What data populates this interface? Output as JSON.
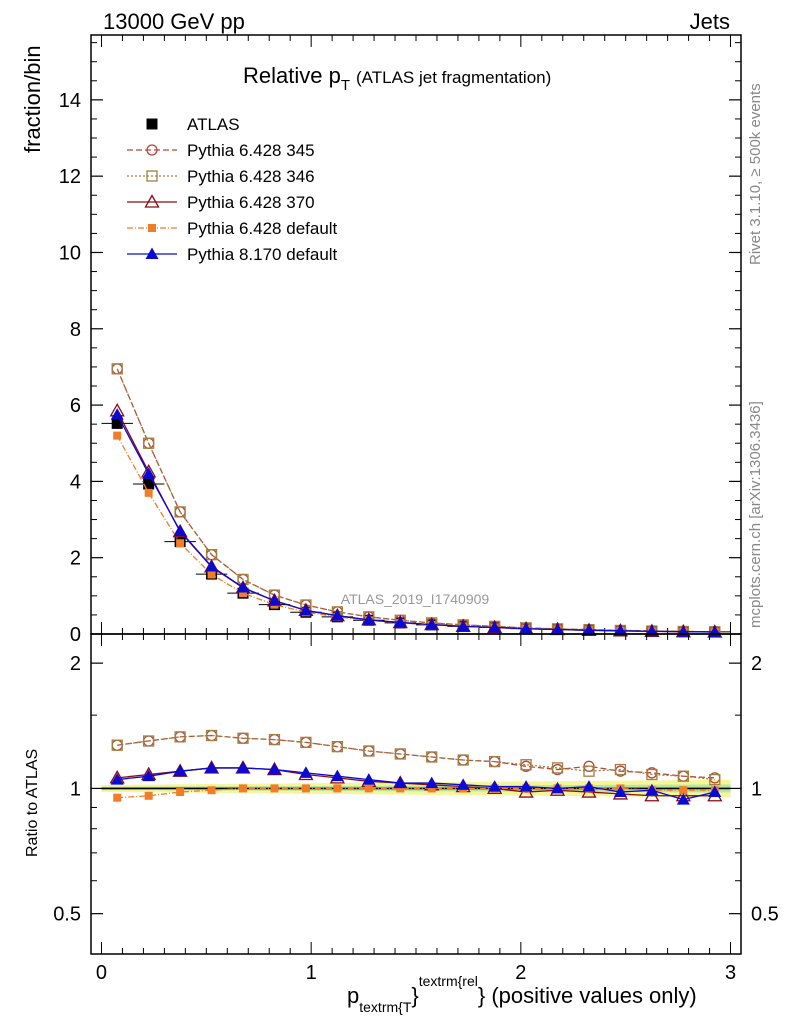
{
  "header": {
    "left": "13000 GeV pp",
    "right": "Jets"
  },
  "side_labels": {
    "rivet": "Rivet 3.1.10, ≥ 500k events",
    "mcplots": "mcplots.cern.ch [arXiv:1306.3436]"
  },
  "watermark": "ATLAS_2019_I1740909",
  "title": {
    "main": "Relative p",
    "sub": "T",
    "extra": "(ATLAS jet fragmentation)"
  },
  "ylabel_main": "fraction/bin",
  "ylabel_ratio": "Ratio to ATLAS",
  "xlabel": {
    "p": "p",
    "sub": "textrm{T",
    "brace": "}",
    "sup": "textrm{rel",
    "tail": "} (positive values only)"
  },
  "chart_data": {
    "type": "line",
    "x": [
      0.075,
      0.225,
      0.375,
      0.525,
      0.675,
      0.825,
      0.975,
      1.125,
      1.275,
      1.425,
      1.575,
      1.725,
      1.875,
      2.025,
      2.175,
      2.325,
      2.475,
      2.625,
      2.775,
      2.925
    ],
    "xlim": [
      -0.05,
      3.05
    ],
    "xticks": [
      "0",
      "1",
      "2",
      "3"
    ],
    "main": {
      "ylim": [
        0,
        15.7
      ],
      "yticks": [
        "0",
        "2",
        "4",
        "6",
        "8",
        "10",
        "12",
        "14"
      ],
      "series": [
        {
          "name": "ATLAS",
          "color": "#000000",
          "marker": "square-filled",
          "values": [
            5.52,
            3.93,
            2.42,
            1.57,
            1.07,
            0.77,
            0.57,
            0.45,
            0.36,
            0.29,
            0.24,
            0.2,
            0.17,
            0.14,
            0.12,
            0.1,
            0.085,
            0.073,
            0.063,
            0.055
          ]
        },
        {
          "name": "Pythia 6.428 345",
          "color": "#b5463a",
          "marker": "circle-open",
          "dash": "6,3",
          "values": [
            6.95,
            5.0,
            3.2,
            2.08,
            1.43,
            1.02,
            0.76,
            0.58,
            0.45,
            0.36,
            0.29,
            0.24,
            0.2,
            0.16,
            0.135,
            0.115,
            0.095,
            0.08,
            0.067,
            0.058
          ]
        },
        {
          "name": "Pythia 6.428 346",
          "color": "#a08040",
          "marker": "square-open",
          "dash": "2,2",
          "values": [
            6.95,
            5.0,
            3.2,
            2.08,
            1.43,
            1.02,
            0.76,
            0.58,
            0.45,
            0.36,
            0.29,
            0.24,
            0.2,
            0.16,
            0.135,
            0.113,
            0.093,
            0.078,
            0.066,
            0.057
          ]
        },
        {
          "name": "Pythia 6.428 370",
          "color": "#8b0a14",
          "marker": "triangle-open",
          "dash": "",
          "values": [
            5.85,
            4.25,
            2.68,
            1.76,
            1.21,
            0.87,
            0.62,
            0.48,
            0.37,
            0.3,
            0.245,
            0.2,
            0.17,
            0.137,
            0.118,
            0.097,
            0.082,
            0.07,
            0.061,
            0.052
          ]
        },
        {
          "name": "Pythia 6.428 default",
          "color": "#f07d28",
          "marker": "square-filled-small",
          "dash": "6,2,1,2",
          "values": [
            5.2,
            3.7,
            2.38,
            1.56,
            1.07,
            0.77,
            0.57,
            0.45,
            0.36,
            0.29,
            0.24,
            0.2,
            0.17,
            0.14,
            0.12,
            0.1,
            0.084,
            0.072,
            0.062,
            0.054
          ]
        },
        {
          "name": "Pythia 8.170 default",
          "color": "#0a0ad2",
          "marker": "triangle-filled",
          "dash": "",
          "values": [
            5.75,
            4.2,
            2.7,
            1.77,
            1.22,
            0.87,
            0.62,
            0.48,
            0.37,
            0.3,
            0.245,
            0.2,
            0.17,
            0.138,
            0.118,
            0.1,
            0.083,
            0.072,
            0.06,
            0.054
          ]
        }
      ]
    },
    "ratio": {
      "ylim": [
        0.4,
        2.35
      ],
      "log": true,
      "yticks": [
        "0.5",
        "1",
        "2"
      ],
      "reference": 1.0,
      "series": [
        {
          "name": "Pythia 6.428 345",
          "values": [
            1.27,
            1.3,
            1.33,
            1.34,
            1.32,
            1.31,
            1.29,
            1.26,
            1.23,
            1.21,
            1.19,
            1.17,
            1.16,
            1.13,
            1.11,
            1.13,
            1.1,
            1.09,
            1.07,
            1.06
          ]
        },
        {
          "name": "Pythia 6.428 346",
          "values": [
            1.27,
            1.3,
            1.33,
            1.34,
            1.32,
            1.31,
            1.29,
            1.26,
            1.23,
            1.21,
            1.19,
            1.17,
            1.16,
            1.14,
            1.12,
            1.1,
            1.11,
            1.08,
            1.07,
            1.05
          ]
        },
        {
          "name": "Pythia 6.428 370",
          "values": [
            1.06,
            1.08,
            1.1,
            1.12,
            1.12,
            1.11,
            1.08,
            1.06,
            1.04,
            1.03,
            1.02,
            1.01,
            1.0,
            0.98,
            0.99,
            0.98,
            0.97,
            0.96,
            0.96,
            0.96
          ]
        },
        {
          "name": "Pythia 6.428 default",
          "values": [
            0.95,
            0.96,
            0.98,
            0.99,
            1.0,
            1.0,
            1.0,
            1.0,
            1.0,
            1.0,
            1.0,
            1.0,
            1.0,
            1.0,
            1.0,
            1.0,
            1.0,
            0.99,
            0.99,
            0.99
          ]
        },
        {
          "name": "Pythia 8.170 default",
          "values": [
            1.05,
            1.07,
            1.1,
            1.12,
            1.12,
            1.11,
            1.09,
            1.07,
            1.05,
            1.03,
            1.03,
            1.02,
            1.01,
            1.01,
            1.0,
            1.01,
            0.98,
            0.99,
            0.94,
            0.98
          ]
        }
      ]
    },
    "legend_position": "top-left"
  }
}
